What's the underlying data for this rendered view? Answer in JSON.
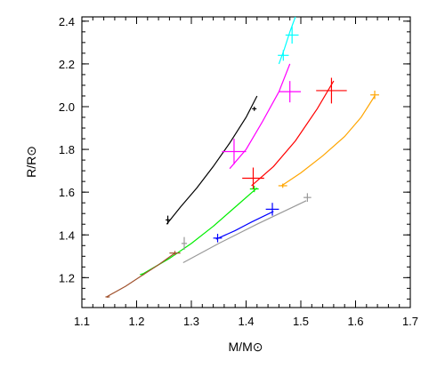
{
  "chart_data": {
    "type": "line",
    "xlabel": "M/M⊙",
    "ylabel": "R/R⊙",
    "xlim": [
      1.1,
      1.7
    ],
    "ylim": [
      1.06,
      2.42
    ],
    "xticks": [
      1.1,
      1.2,
      1.3,
      1.4,
      1.5,
      1.6,
      1.7
    ],
    "xticklabels": [
      "1.1",
      "1.2",
      "1.3",
      "1.4",
      "1.5",
      "1.6",
      "1.7"
    ],
    "yticks": [
      1.2,
      1.4,
      1.6,
      1.8,
      2.0,
      2.2,
      2.4
    ],
    "yticklabels": [
      "1.2",
      "1.4",
      "1.6",
      "1.8",
      "2.0",
      "2.2",
      "2.4"
    ],
    "x_minor_step": 0.02,
    "y_minor_step": 0.05,
    "grid": false,
    "series": [
      {
        "color": "#000000",
        "x": [
          1.255,
          1.28,
          1.31,
          1.34,
          1.37,
          1.4,
          1.42
        ],
        "y": [
          1.45,
          1.53,
          1.62,
          1.72,
          1.83,
          1.95,
          2.05
        ],
        "points": [
          {
            "x": 1.257,
            "y": 1.47,
            "ex": 0.004,
            "ey": 0.02
          },
          {
            "x": 1.415,
            "y": 1.99,
            "ex": 0.004,
            "ey": 0.01
          }
        ]
      },
      {
        "color": "#00ee00",
        "x": [
          1.21,
          1.26,
          1.3,
          1.34,
          1.38,
          1.42
        ],
        "y": [
          1.215,
          1.29,
          1.36,
          1.44,
          1.53,
          1.62
        ],
        "points": [
          {
            "x": 1.21,
            "y": 1.215,
            "ex": 0.004,
            "ey": 0.005
          },
          {
            "x": 1.415,
            "y": 1.615,
            "ex": 0.008,
            "ey": 0.015
          }
        ]
      },
      {
        "color": "#a0522d",
        "x": [
          1.145,
          1.18,
          1.21,
          1.24,
          1.27
        ],
        "y": [
          1.11,
          1.16,
          1.21,
          1.26,
          1.315
        ],
        "points": [
          {
            "x": 1.147,
            "y": 1.11,
            "ex": 0.004,
            "ey": 0.004
          },
          {
            "x": 1.27,
            "y": 1.315,
            "ex": 0.01,
            "ey": 0.01
          }
        ]
      },
      {
        "color": "#0000ff",
        "x": [
          1.345,
          1.38,
          1.41,
          1.45
        ],
        "y": [
          1.38,
          1.42,
          1.46,
          1.51
        ],
        "points": [
          {
            "x": 1.348,
            "y": 1.385,
            "ex": 0.008,
            "ey": 0.02
          },
          {
            "x": 1.448,
            "y": 1.52,
            "ex": 0.012,
            "ey": 0.03
          }
        ]
      },
      {
        "color": "#999999",
        "x": [
          1.285,
          1.35,
          1.42,
          1.51
        ],
        "y": [
          1.27,
          1.36,
          1.45,
          1.56
        ],
        "points": [
          {
            "x": 1.287,
            "y": 1.36,
            "ex": 0.005,
            "ey": 0.03
          },
          {
            "x": 1.512,
            "y": 1.575,
            "ex": 0.007,
            "ey": 0.02
          }
        ]
      },
      {
        "color": "#ff00ff",
        "x": [
          1.37,
          1.4,
          1.43,
          1.46,
          1.48
        ],
        "y": [
          1.71,
          1.8,
          1.93,
          2.07,
          2.2
        ],
        "points": [
          {
            "x": 1.378,
            "y": 1.79,
            "ex": 0.022,
            "ey": 0.06
          },
          {
            "x": 1.48,
            "y": 2.07,
            "ex": 0.02,
            "ey": 0.05
          }
        ]
      },
      {
        "color": "#ff0000",
        "x": [
          1.41,
          1.45,
          1.49,
          1.53,
          1.56
        ],
        "y": [
          1.63,
          1.72,
          1.84,
          1.99,
          2.12
        ],
        "points": [
          {
            "x": 1.413,
            "y": 1.665,
            "ex": 0.02,
            "ey": 0.05
          },
          {
            "x": 1.556,
            "y": 2.075,
            "ex": 0.028,
            "ey": 0.06
          }
        ]
      },
      {
        "color": "#ffa500",
        "x": [
          1.465,
          1.5,
          1.54,
          1.58,
          1.61,
          1.635
        ],
        "y": [
          1.63,
          1.69,
          1.77,
          1.86,
          1.95,
          2.05
        ],
        "points": [
          {
            "x": 1.467,
            "y": 1.63,
            "ex": 0.008,
            "ey": 0.01
          },
          {
            "x": 1.635,
            "y": 2.055,
            "ex": 0.008,
            "ey": 0.02
          }
        ]
      },
      {
        "color": "#00ffff",
        "x": [
          1.46,
          1.47,
          1.48,
          1.49
        ],
        "y": [
          2.2,
          2.27,
          2.35,
          2.42
        ],
        "points": [
          {
            "x": 1.468,
            "y": 2.24,
            "ex": 0.01,
            "ey": 0.025
          },
          {
            "x": 1.484,
            "y": 2.335,
            "ex": 0.012,
            "ey": 0.04
          }
        ]
      }
    ]
  }
}
